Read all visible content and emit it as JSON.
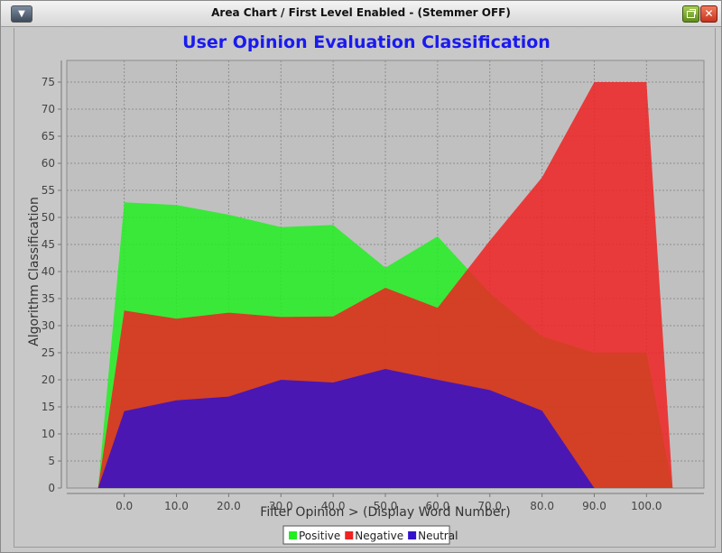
{
  "window": {
    "title": "Area Chart / First Level Enabled - (Stemmer OFF)",
    "menu_icon": "chevron-down-icon",
    "restore_icon": "restore-window-icon",
    "close_icon": "close-icon",
    "close_glyph": "✕"
  },
  "chart_data": {
    "type": "area",
    "title": "User Opinion Evaluation Classification",
    "xlabel": "Filter Opinion > (Display Word Number)",
    "ylabel": "Algorithm Classification",
    "x": [
      -5,
      0,
      10,
      20,
      30,
      40,
      50,
      60,
      70,
      80,
      90,
      100,
      105
    ],
    "x_ticks": [
      0,
      10,
      20,
      30,
      40,
      50,
      60,
      70,
      80,
      90,
      100
    ],
    "x_tick_labels": [
      "0.0",
      "10.0",
      "20.0",
      "30.0",
      "40.0",
      "50.0",
      "60.0",
      "70.0",
      "80.0",
      "90.0",
      "100.0"
    ],
    "xlim": [
      -11,
      111
    ],
    "ylim": [
      0,
      79
    ],
    "y_ticks": [
      0,
      5,
      10,
      15,
      20,
      25,
      30,
      35,
      40,
      45,
      50,
      55,
      60,
      65,
      70,
      75
    ],
    "y_tick_labels": [
      "0",
      "5",
      "10",
      "15",
      "20",
      "25",
      "30",
      "35",
      "40",
      "45",
      "50",
      "55",
      "60",
      "65",
      "70",
      "75"
    ],
    "grid": true,
    "legend_position": "bottom",
    "series": [
      {
        "name": "Positive",
        "color": "#22ee22",
        "values": [
          0,
          52.8,
          52.3,
          50.5,
          48.2,
          48.6,
          40.7,
          46.5,
          36.0,
          28.0,
          25.0,
          25.0,
          0
        ]
      },
      {
        "name": "Negative",
        "color": "#ee2222",
        "values": [
          0,
          32.8,
          31.3,
          32.4,
          31.6,
          31.7,
          37.0,
          33.3,
          45.7,
          57.4,
          75.0,
          75.0,
          0
        ]
      },
      {
        "name": "Neutral",
        "color": "#3311cc",
        "values": [
          0,
          14.2,
          16.2,
          16.9,
          20.0,
          19.5,
          22.0,
          20.0,
          18.1,
          14.3,
          0,
          0,
          0
        ]
      }
    ]
  }
}
